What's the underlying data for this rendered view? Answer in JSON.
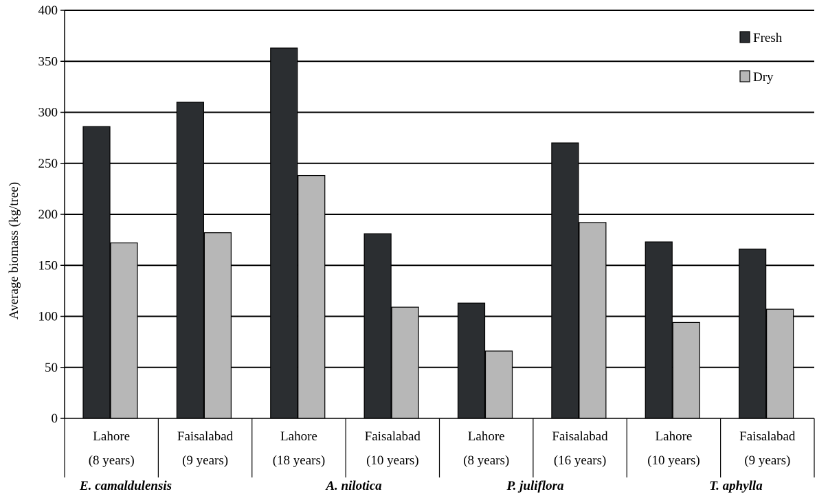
{
  "chart_data": {
    "type": "bar",
    "ylabel": "Average biomass (kg/tree)",
    "xlabel": "",
    "ylim": [
      0,
      400
    ],
    "yticks": [
      0,
      50,
      100,
      150,
      200,
      250,
      300,
      350,
      400
    ],
    "grid": "horizontal",
    "legend_position": "top-right",
    "categories": [
      {
        "line1": "Lahore",
        "line2": "(8 years)"
      },
      {
        "line1": "Faisalabad",
        "line2": "(9 years)"
      },
      {
        "line1": "Lahore",
        "line2": "(18 years)"
      },
      {
        "line1": "Faisalabad",
        "line2": "(10 years)"
      },
      {
        "line1": "Lahore",
        "line2": "(8 years)"
      },
      {
        "line1": "Faisalabad",
        "line2": "(16 years)"
      },
      {
        "line1": "Lahore",
        "line2": "(10 years)"
      },
      {
        "line1": "Faisalabad",
        "line2": "(9 years)"
      }
    ],
    "groups": [
      "E. camaldulensis",
      "A. nilotica",
      "P. juliflora",
      "T. aphylla"
    ],
    "series": [
      {
        "name": "Fresh",
        "color": "#2b2e31",
        "values": [
          286,
          310,
          363,
          181,
          113,
          270,
          173,
          166
        ]
      },
      {
        "name": "Dry",
        "color": "#b7b7b7",
        "values": [
          172,
          182,
          238,
          109,
          66,
          192,
          94,
          107
        ]
      }
    ]
  }
}
